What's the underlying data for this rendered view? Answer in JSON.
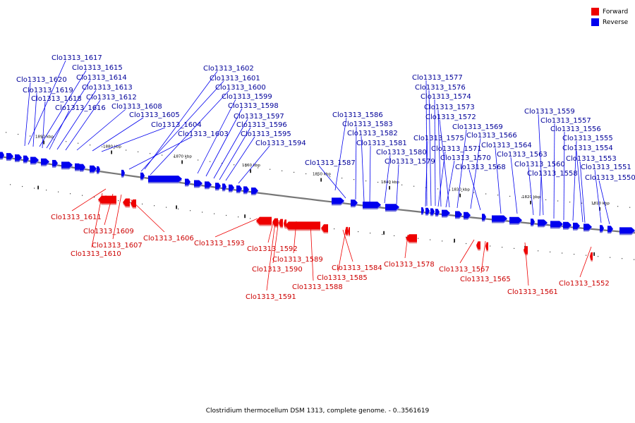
{
  "legend": {
    "items": [
      {
        "label": "Forward",
        "color": "#ee0000"
      },
      {
        "label": "Reverse",
        "color": "#0000ee"
      }
    ]
  },
  "caption": "Clostridium thermocellum DSM 1313, complete genome. - 0..3561619",
  "colors": {
    "forward": "#ee0000",
    "reverse": "#0000ee",
    "backbone": "#777777",
    "forward_label": "#cc0000",
    "reverse_label": "#000099"
  },
  "scale_ticks": [
    "1890 kbp",
    "1880 kbp",
    "1870 kbp",
    "1860 kbp",
    "1850 kbp",
    "1840 kbp",
    "1830 kbp",
    "1820 kbp",
    "1810 kbp"
  ],
  "reverse_labels": [
    "Clo1313_1617",
    "Clo1313_1615",
    "Clo1313_1614",
    "Clo1313_1620",
    "Clo1313_1613",
    "Clo1313_1619",
    "Clo1313_1618",
    "Clo1313_1612",
    "Clo1313_1616",
    "Clo1313_1608",
    "Clo1313_1605",
    "Clo1313_1604",
    "Clo1313_1603",
    "Clo1313_1602",
    "Clo1313_1601",
    "Clo1313_1600",
    "Clo1313_1599",
    "Clo1313_1598",
    "Clo1313_1597",
    "Clo1313_1596",
    "Clo1313_1595",
    "Clo1313_1594",
    "Clo1313_1586",
    "Clo1313_1583",
    "Clo1313_1582",
    "Clo1313_1581",
    "Clo1313_1587",
    "Clo1313_1580",
    "Clo1313_1579",
    "Clo1313_1577",
    "Clo1313_1576",
    "Clo1313_1574",
    "Clo1313_1573",
    "Clo1313_1572",
    "Clo1313_1569",
    "Clo1313_1575",
    "Clo1313_1566",
    "Clo1313_1571",
    "Clo1313_1570",
    "Clo1313_1564",
    "Clo1313_1568",
    "Clo1313_1563",
    "Clo1313_1559",
    "Clo1313_1557",
    "Clo1313_1556",
    "Clo1313_1555",
    "Clo1313_1554",
    "Clo1313_1553",
    "Clo1313_1560",
    "Clo1313_1558",
    "Clo1313_1551",
    "Clo1313_1550"
  ],
  "forward_labels": [
    "Clo1313_1611",
    "Clo1313_1609",
    "Clo1313_1607",
    "Clo1313_1610",
    "Clo1313_1606",
    "Clo1313_1593",
    "Clo1313_1592",
    "Clo1313_1589",
    "Clo1313_1590",
    "Clo1313_1591",
    "Clo1313_1588",
    "Clo1313_1584",
    "Clo1313_1585",
    "Clo1313_1578",
    "Clo1313_1567",
    "Clo1313_1565",
    "Clo1313_1561",
    "Clo1313_1552"
  ]
}
